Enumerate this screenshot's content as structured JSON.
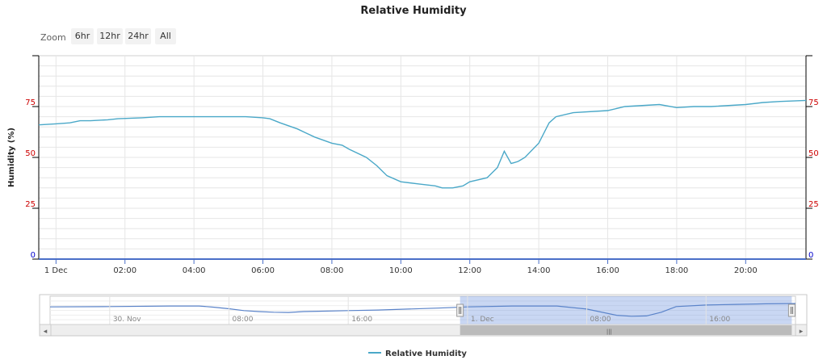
{
  "chart_data": {
    "type": "line",
    "title": "Relative Humidity",
    "ylabel": "Humidity (%)",
    "xlabel": "",
    "ylim": [
      0,
      100
    ],
    "yticks": [
      0,
      25,
      50,
      75
    ],
    "grid": true,
    "legend_placement": "bottom-center",
    "x_tick_labels": [
      "1 Dec",
      "02:00",
      "04:00",
      "06:00",
      "08:00",
      "10:00",
      "12:00",
      "14:00",
      "16:00",
      "18:00",
      "20:00"
    ],
    "x_range_hours": [
      -0.5,
      21.75
    ],
    "series": [
      {
        "name": "Relative Humidity",
        "color": "#4aa8c8",
        "points": [
          [
            -0.5,
            66
          ],
          [
            0.0,
            66.5
          ],
          [
            0.4,
            67
          ],
          [
            0.7,
            68
          ],
          [
            1.0,
            68
          ],
          [
            1.5,
            68.5
          ],
          [
            1.8,
            69
          ],
          [
            2.5,
            69.5
          ],
          [
            3.0,
            70
          ],
          [
            4.0,
            70
          ],
          [
            5.0,
            70
          ],
          [
            5.5,
            70
          ],
          [
            6.0,
            69.5
          ],
          [
            6.2,
            69
          ],
          [
            6.5,
            67
          ],
          [
            7.0,
            64
          ],
          [
            7.5,
            60
          ],
          [
            8.0,
            57
          ],
          [
            8.3,
            56
          ],
          [
            8.5,
            54
          ],
          [
            9.0,
            50
          ],
          [
            9.3,
            46
          ],
          [
            9.6,
            41
          ],
          [
            10.0,
            38
          ],
          [
            10.5,
            37
          ],
          [
            11.0,
            36
          ],
          [
            11.2,
            35
          ],
          [
            11.5,
            35
          ],
          [
            11.8,
            36
          ],
          [
            12.0,
            38
          ],
          [
            12.5,
            40
          ],
          [
            12.8,
            45
          ],
          [
            13.0,
            53
          ],
          [
            13.2,
            47
          ],
          [
            13.4,
            48
          ],
          [
            13.6,
            50
          ],
          [
            14.0,
            57
          ],
          [
            14.3,
            67
          ],
          [
            14.5,
            70
          ],
          [
            15.0,
            72
          ],
          [
            16.0,
            73
          ],
          [
            16.5,
            75
          ],
          [
            17.5,
            76
          ],
          [
            18.0,
            74.5
          ],
          [
            18.5,
            75
          ],
          [
            19.0,
            75
          ],
          [
            20.0,
            76
          ],
          [
            20.5,
            77
          ],
          [
            21.0,
            77.5
          ],
          [
            21.75,
            78
          ]
        ]
      }
    ],
    "navigator": {
      "x_tick_labels": [
        "30. Nov",
        "08:00",
        "16:00",
        "1. Dec",
        "08:00",
        "16:00"
      ],
      "x_tick_hours": [
        -24,
        -16,
        -8,
        0,
        8,
        16
      ],
      "x_range_hours": [
        -28,
        22
      ],
      "selected_range_hours": [
        -0.5,
        21.75
      ],
      "series": [
        [
          -28,
          67
        ],
        [
          -24,
          68
        ],
        [
          -20,
          70
        ],
        [
          -18,
          70
        ],
        [
          -17,
          66
        ],
        [
          -16,
          61
        ],
        [
          -15,
          55
        ],
        [
          -14,
          52
        ],
        [
          -13,
          50
        ],
        [
          -12,
          49
        ],
        [
          -11,
          52
        ],
        [
          -10,
          53
        ],
        [
          -8,
          55
        ],
        [
          -6,
          57
        ],
        [
          -4,
          60
        ],
        [
          -2,
          63
        ],
        [
          0,
          67
        ],
        [
          3,
          70
        ],
        [
          6,
          70
        ],
        [
          8,
          60
        ],
        [
          10,
          40
        ],
        [
          11,
          37
        ],
        [
          12,
          38
        ],
        [
          13,
          50
        ],
        [
          14,
          68
        ],
        [
          16,
          73
        ],
        [
          18,
          75
        ],
        [
          20,
          77
        ],
        [
          22,
          78
        ]
      ]
    }
  },
  "zoom": {
    "label": "Zoom",
    "buttons": [
      "6hr",
      "12hr",
      "24hr",
      "All"
    ]
  }
}
